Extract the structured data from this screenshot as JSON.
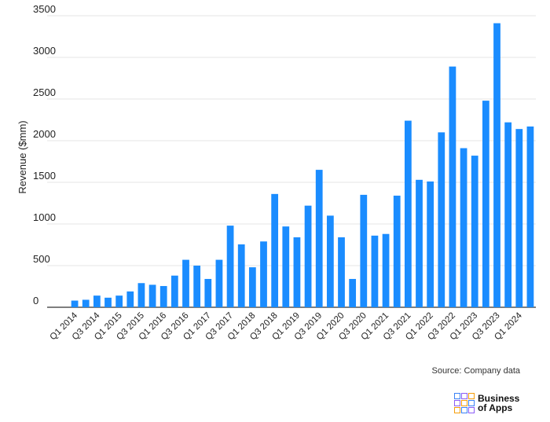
{
  "chart_data": {
    "type": "bar",
    "ylabel": "Revenue ($mm)",
    "ylim": [
      0,
      3500
    ],
    "yticks": [
      0,
      500,
      1000,
      1500,
      2000,
      2500,
      3000,
      3500
    ],
    "grid": true,
    "bar_color": "#1a8cff",
    "categories": [
      "Q1 2014",
      "Q2 2014",
      "Q3 2014",
      "Q4 2014",
      "Q1 2015",
      "Q2 2015",
      "Q3 2015",
      "Q4 2015",
      "Q1 2016",
      "Q2 2016",
      "Q3 2016",
      "Q4 2016",
      "Q1 2017",
      "Q2 2017",
      "Q3 2017",
      "Q4 2017",
      "Q1 2018",
      "Q2 2018",
      "Q3 2018",
      "Q4 2018",
      "Q1 2019",
      "Q2 2019",
      "Q3 2019",
      "Q4 2019",
      "Q1 2020",
      "Q2 2020",
      "Q3 2020",
      "Q4 2020",
      "Q1 2021",
      "Q2 2021",
      "Q3 2021",
      "Q4 2021",
      "Q1 2022",
      "Q2 2022",
      "Q3 2022",
      "Q4 2022",
      "Q1 2023",
      "Q2 2023",
      "Q3 2023",
      "Q4 2023",
      "Q1 2024",
      "Q2 2024"
    ],
    "xtick_labels": [
      "Q1 2014",
      "Q3 2014",
      "Q1 2015",
      "Q3 2015",
      "Q1 2016",
      "Q3 2016",
      "Q1 2017",
      "Q3 2017",
      "Q1 2018",
      "Q3 2018",
      "Q1 2019",
      "Q3 2019",
      "Q1 2020",
      "Q3 2020",
      "Q1 2021",
      "Q3 2021",
      "Q1 2022",
      "Q3 2022",
      "Q1 2023",
      "Q3 2023",
      "Q1 2024"
    ],
    "values": [
      80,
      90,
      140,
      115,
      140,
      190,
      290,
      270,
      255,
      380,
      570,
      500,
      340,
      570,
      980,
      755,
      480,
      790,
      1360,
      970,
      840,
      1220,
      1650,
      1100,
      840,
      340,
      1350,
      860,
      880,
      1340,
      2240,
      1530,
      1510,
      2100,
      2890,
      1910,
      1820,
      2480,
      3410,
      2220,
      2140,
      2170
    ]
  },
  "footer": {
    "source": "Source: Company data",
    "logo_line1": "Business",
    "logo_line2": "of Apps"
  }
}
